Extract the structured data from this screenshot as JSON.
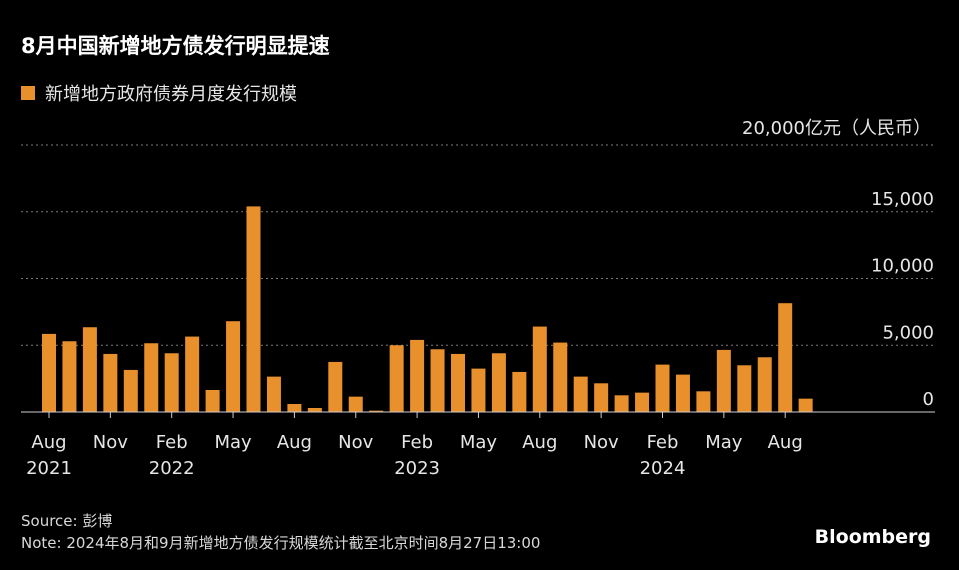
{
  "title": "8月中国新增地方债发行明显提速",
  "chart_data": {
    "type": "bar",
    "title": "8月中国新增地方债发行明显提速",
    "series": [
      {
        "name": "新增地方政府债券月度发行规模",
        "color": "#e8902b",
        "values": [
          5850,
          5300,
          6350,
          4350,
          3150,
          5150,
          4400,
          5650,
          1650,
          6800,
          15400,
          2650,
          600,
          300,
          3750,
          1150,
          100,
          5000,
          5400,
          4700,
          4350,
          3250,
          4400,
          3000,
          6400,
          5200,
          2650,
          2150,
          1250,
          1450,
          3550,
          2800,
          1550,
          4650,
          3500,
          4100,
          8150,
          1000
        ]
      }
    ],
    "ylabel": "20,000亿元（人民币）",
    "ylim": [
      0,
      20000
    ],
    "y_ticks": [
      {
        "value": 20000,
        "label": "20,000亿元（人民币）"
      },
      {
        "value": 15000,
        "label": "15,000"
      },
      {
        "value": 10000,
        "label": "10,000"
      },
      {
        "value": 5000,
        "label": "5,000"
      },
      {
        "value": 0,
        "label": "0"
      }
    ],
    "x_ticks": [
      {
        "index": 0,
        "label": "Aug",
        "year": "2021"
      },
      {
        "index": 3,
        "label": "Nov",
        "year": ""
      },
      {
        "index": 6,
        "label": "Feb",
        "year": "2022"
      },
      {
        "index": 9,
        "label": "May",
        "year": ""
      },
      {
        "index": 12,
        "label": "Aug",
        "year": ""
      },
      {
        "index": 15,
        "label": "Nov",
        "year": ""
      },
      {
        "index": 18,
        "label": "Feb",
        "year": "2023"
      },
      {
        "index": 21,
        "label": "May",
        "year": ""
      },
      {
        "index": 24,
        "label": "Aug",
        "year": ""
      },
      {
        "index": 27,
        "label": "Nov",
        "year": ""
      },
      {
        "index": 30,
        "label": "Feb",
        "year": "2024"
      },
      {
        "index": 33,
        "label": "May",
        "year": ""
      },
      {
        "index": 36,
        "label": "Aug",
        "year": ""
      }
    ],
    "grid": true,
    "legend_position": "top-left"
  },
  "footer": {
    "source": "Source: 彭博",
    "note": "Note: 2024年8月和9月新增地方债发行规模统计截至北京时间8月27日13:00",
    "brand": "Bloomberg"
  }
}
